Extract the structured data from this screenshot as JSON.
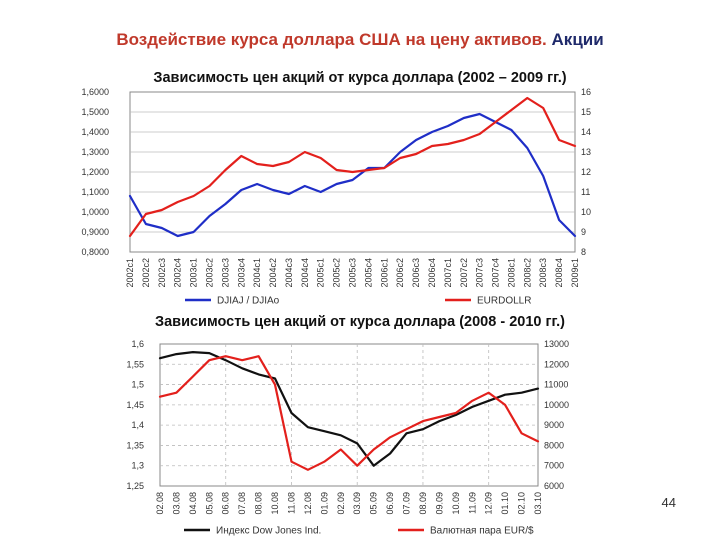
{
  "slide": {
    "title_part1": "Воздействие курса доллара США на цену активов.",
    "title_part2": "Акции",
    "page_number": "44"
  },
  "chart_data": [
    {
      "type": "line",
      "title": "Зависимость цен акций от курса доллара (2002 – 2009 гг.)",
      "categories": [
        "2002c1",
        "2002c2",
        "2002c3",
        "2002c4",
        "2003c1",
        "2003c2",
        "2003c3",
        "2003c4",
        "2004c1",
        "2004c2",
        "2004c3",
        "2004c4",
        "2005c1",
        "2005c2",
        "2005c3",
        "2005c4",
        "2006c1",
        "2006c2",
        "2006c3",
        "2006c4",
        "2007c1",
        "2007c2",
        "2007c3",
        "2007c4",
        "2008c1",
        "2008c2",
        "2008c3",
        "2008c4",
        "2009c1"
      ],
      "y_left": {
        "range": [
          0.8,
          1.6
        ],
        "ticks": [
          "0,8000",
          "0,9000",
          "1,0000",
          "1,1000",
          "1,2000",
          "1,3000",
          "1,4000",
          "1,5000",
          "1,6000"
        ]
      },
      "y_right": {
        "range": [
          8,
          16
        ],
        "ticks": [
          "8",
          "9",
          "10",
          "11",
          "12",
          "13",
          "14",
          "15",
          "16"
        ]
      },
      "legend_position": "bottom",
      "series": [
        {
          "name": "DJIAJ / DJIAo",
          "color": "#1f2ec7",
          "axis": "left",
          "values": [
            1.08,
            0.94,
            0.92,
            0.88,
            0.9,
            0.98,
            1.04,
            1.11,
            1.14,
            1.11,
            1.09,
            1.13,
            1.1,
            1.14,
            1.16,
            1.22,
            1.22,
            1.3,
            1.36,
            1.4,
            1.43,
            1.47,
            1.49,
            1.45,
            1.41,
            1.32,
            1.18,
            0.96,
            0.88
          ]
        },
        {
          "name": "EURDOLLR",
          "color": "#e3201c",
          "axis": "right",
          "values": [
            8.8,
            9.9,
            10.1,
            10.5,
            10.8,
            11.3,
            12.1,
            12.8,
            12.4,
            12.3,
            12.5,
            13.0,
            12.7,
            12.1,
            12.0,
            12.1,
            12.2,
            12.7,
            12.9,
            13.3,
            13.4,
            13.6,
            13.9,
            14.5,
            15.1,
            15.7,
            15.2,
            13.6,
            13.3
          ]
        }
      ]
    },
    {
      "type": "line",
      "title": "Зависимость цен акций от курса доллара (2008 - 2010 гг.)",
      "categories": [
        "02.08",
        "03.08",
        "04.08",
        "05.08",
        "06.08",
        "07.08",
        "08.08",
        "10.08",
        "11.08",
        "12.08",
        "01.09",
        "02.09",
        "03.09",
        "05.09",
        "06.09",
        "07.09",
        "08.09",
        "09.09",
        "10.09",
        "11.09",
        "12.09",
        "01.10",
        "02.10",
        "03.10"
      ],
      "y_left": {
        "range": [
          1.25,
          1.6
        ],
        "ticks": [
          "1,25",
          "1,3",
          "1,35",
          "1,4",
          "1,45",
          "1,5",
          "1,55",
          "1,6"
        ]
      },
      "y_right": {
        "range": [
          6000,
          13000
        ],
        "ticks": [
          "6000",
          "7000",
          "8000",
          "9000",
          "10000",
          "11000",
          "12000",
          "13000"
        ]
      },
      "legend_position": "bottom",
      "series": [
        {
          "name": "Индекс Dow Jones Ind.",
          "color": "#111111",
          "axis": "right",
          "values": [
            12300,
            12500,
            12600,
            12550,
            12200,
            11800,
            11500,
            11300,
            9600,
            8900,
            8700,
            8500,
            8100,
            7000,
            7600,
            8600,
            8800,
            9200,
            9500,
            9900,
            10200,
            10500,
            10600,
            10800
          ]
        },
        {
          "name": "Валютная пара EUR/$",
          "color": "#e3201c",
          "axis": "left",
          "values": [
            1.47,
            1.48,
            1.52,
            1.56,
            1.57,
            1.56,
            1.57,
            1.5,
            1.31,
            1.29,
            1.31,
            1.34,
            1.3,
            1.34,
            1.37,
            1.39,
            1.41,
            1.42,
            1.43,
            1.46,
            1.48,
            1.45,
            1.38,
            1.36
          ]
        }
      ]
    }
  ]
}
